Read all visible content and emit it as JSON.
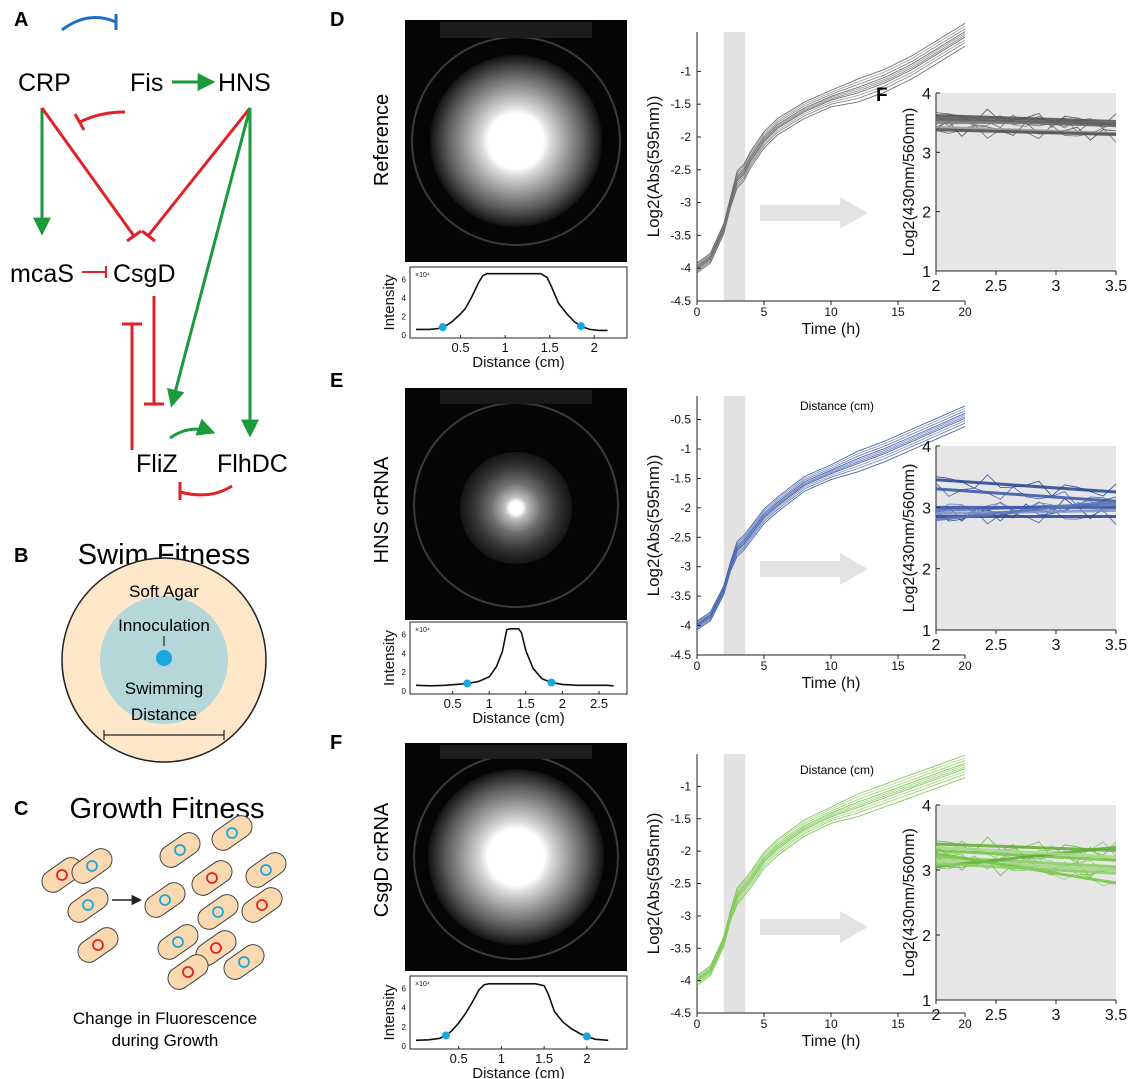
{
  "panel_letters": {
    "a": "A",
    "b": "B",
    "c": "C",
    "d": "D",
    "e": "E",
    "f": "F",
    "f_inset": "F"
  },
  "network": {
    "nodes": [
      {
        "id": "crp",
        "label": "CRP"
      },
      {
        "id": "fis",
        "label": "Fis"
      },
      {
        "id": "hns",
        "label": "HNS"
      },
      {
        "id": "mcas",
        "label": "mcaS"
      },
      {
        "id": "csgd",
        "label": "CsgD"
      },
      {
        "id": "fliz",
        "label": "FliZ"
      },
      {
        "id": "flhdc",
        "label": "FlhDC"
      }
    ],
    "activation_color": "#1a9a3a",
    "repression_color": "#e02127",
    "fis_crp_color": "#1f6fbf"
  },
  "swim": {
    "title": "Swim Fitness",
    "agar_label": "Soft Agar",
    "inoculation_label": "Innoculation",
    "swimming_label": "Swimming",
    "distance_label": "Distance",
    "agar_color": "#fde7c8",
    "zone_color": "#b6d7d9",
    "dot_color": "#1aa7e0"
  },
  "growth": {
    "title": "Growth Fitness",
    "caption_line1": "Change in Fluorescence",
    "caption_line2": "during Growth",
    "cell_color": "#fbd9b0",
    "blue_ring": "#1aa7e0",
    "red_ring": "#e02127"
  },
  "rows": [
    {
      "key": "reference",
      "label": "Reference",
      "color": "#555555",
      "profile": {
        "xlabel": "Distance (cm)",
        "ylabel": "Intensity",
        "exp": "×10⁴",
        "xticks": [
          "0.5",
          "1",
          "1.5",
          "2"
        ],
        "yticks": [
          "0",
          "2",
          "4",
          "6"
        ],
        "xmax": 2.3,
        "ymax": 7,
        "x": [
          0.0,
          0.15,
          0.25,
          0.32,
          0.4,
          0.48,
          0.55,
          0.62,
          0.7,
          0.75,
          0.8,
          1.0,
          1.2,
          1.4,
          1.47,
          1.52,
          1.6,
          1.7,
          1.78,
          1.86,
          1.95,
          2.05,
          2.15
        ],
        "y": [
          0.6,
          0.6,
          0.7,
          0.9,
          1.4,
          2.1,
          2.8,
          4.0,
          5.6,
          6.4,
          6.6,
          6.6,
          6.6,
          6.6,
          6.2,
          5.2,
          3.4,
          2.2,
          1.4,
          0.9,
          0.6,
          0.5,
          0.5
        ],
        "dots": [
          0.3,
          1.85
        ]
      },
      "growth": {
        "xlabel": "Time (h)",
        "ylabel": "Log2(Abs(595nm))",
        "xticks": [
          "0",
          "5",
          "10",
          "15",
          "20"
        ],
        "yticks": [
          "-4.5",
          "-4",
          "-3.5",
          "-3",
          "-2.5",
          "-2",
          "-1.5",
          "-1"
        ],
        "xlim": [
          0,
          20
        ],
        "ylim": [
          -4.5,
          -0.4
        ],
        "shade": [
          2,
          3.6
        ],
        "t": [
          0,
          1,
          2,
          2.5,
          3,
          3.5,
          4,
          5,
          6,
          8,
          10,
          12,
          14,
          16,
          18,
          20
        ],
        "y": [
          -4.0,
          -3.85,
          -3.4,
          -3.0,
          -2.65,
          -2.55,
          -2.35,
          -2.05,
          -1.85,
          -1.6,
          -1.42,
          -1.3,
          -1.15,
          -0.95,
          -0.7,
          -0.45
        ]
      },
      "inset": {
        "ylabel": "Log2(430nm/560nm)",
        "xticks": [
          "2",
          "2.5",
          "3",
          "3.5"
        ],
        "yticks": [
          "1",
          "2",
          "3",
          "4"
        ],
        "xlim": [
          2,
          3.5
        ],
        "ylim": [
          1,
          4
        ],
        "fits": [
          [
            3.62,
            3.52
          ],
          [
            3.55,
            3.45
          ],
          [
            3.5,
            3.5
          ],
          [
            3.42,
            3.32
          ],
          [
            3.38,
            3.3
          ],
          [
            3.58,
            3.48
          ]
        ]
      }
    },
    {
      "key": "hns",
      "label": "HNS crRNA",
      "color": "#2a4aa0",
      "annotation": "Distance (cm)",
      "profile": {
        "xlabel": "Distance (cm)",
        "ylabel": "Intensity",
        "exp": "×10⁴",
        "xticks": [
          "0.5",
          "1",
          "1.5",
          "2",
          "2.5"
        ],
        "yticks": [
          "0",
          "2",
          "4",
          "6"
        ],
        "xmax": 2.8,
        "ymax": 7,
        "x": [
          0.0,
          0.2,
          0.4,
          0.55,
          0.7,
          0.85,
          1.0,
          1.1,
          1.18,
          1.24,
          1.28,
          1.4,
          1.44,
          1.5,
          1.6,
          1.72,
          1.85,
          2.0,
          2.2,
          2.4,
          2.6,
          2.7
        ],
        "y": [
          0.6,
          0.55,
          0.6,
          0.7,
          0.8,
          1.0,
          1.5,
          2.6,
          4.2,
          6.5,
          6.6,
          6.6,
          6.2,
          4.3,
          2.4,
          1.3,
          0.9,
          0.7,
          0.6,
          0.6,
          0.6,
          0.55
        ],
        "dots": [
          0.7,
          1.85
        ]
      },
      "growth": {
        "xlabel": "Time (h)",
        "ylabel": "Log2(Abs(595nm))",
        "xticks": [
          "0",
          "5",
          "10",
          "15",
          "20"
        ],
        "yticks": [
          "-4.5",
          "-4",
          "-3.5",
          "-3",
          "-2.5",
          "-2",
          "-1.5",
          "-1",
          "-0.5"
        ],
        "xlim": [
          0,
          20
        ],
        "ylim": [
          -4.5,
          -0.1
        ],
        "shade": [
          2,
          3.6
        ],
        "t": [
          0,
          1,
          2,
          2.5,
          3,
          3.5,
          4,
          5,
          6,
          8,
          10,
          12,
          14,
          16,
          18,
          20
        ],
        "y": [
          -4.0,
          -3.85,
          -3.4,
          -3.0,
          -2.7,
          -2.6,
          -2.45,
          -2.15,
          -1.95,
          -1.6,
          -1.4,
          -1.22,
          -1.05,
          -0.85,
          -0.65,
          -0.45
        ]
      },
      "inset": {
        "ylabel": "Log2(430nm/560nm)",
        "xticks": [
          "2",
          "2.5",
          "3",
          "3.5"
        ],
        "yticks": [
          "1",
          "2",
          "3",
          "4"
        ],
        "xlim": [
          2,
          3.5
        ],
        "ylim": [
          1,
          4
        ],
        "fits": [
          [
            3.45,
            3.25
          ],
          [
            3.3,
            3.1
          ],
          [
            2.95,
            3.05
          ],
          [
            2.9,
            2.95
          ],
          [
            2.85,
            2.85
          ],
          [
            3.0,
            3.0
          ],
          [
            2.8,
            3.1
          ]
        ]
      }
    },
    {
      "key": "csgd",
      "label": "CsgD crRNA",
      "color": "#6abf3a",
      "annotation": "Distance (cm)",
      "profile": {
        "xlabel": "Distance (cm)",
        "ylabel": "Intensity",
        "exp": "×10⁴",
        "xticks": [
          "0.5",
          "1",
          "1.5",
          "2"
        ],
        "yticks": [
          "0",
          "2",
          "4",
          "6"
        ],
        "xmax": 2.4,
        "ymax": 7,
        "x": [
          0.0,
          0.15,
          0.28,
          0.35,
          0.42,
          0.5,
          0.58,
          0.66,
          0.74,
          0.8,
          0.85,
          1.0,
          1.2,
          1.4,
          1.5,
          1.55,
          1.62,
          1.72,
          1.82,
          1.92,
          2.0,
          2.1,
          2.25
        ],
        "y": [
          0.6,
          0.65,
          0.8,
          1.1,
          1.6,
          2.4,
          3.4,
          4.6,
          5.9,
          6.4,
          6.5,
          6.5,
          6.5,
          6.5,
          6.3,
          5.4,
          3.6,
          2.5,
          1.8,
          1.3,
          1.0,
          0.7,
          0.6
        ],
        "dots": [
          0.35,
          2.0
        ]
      },
      "growth": {
        "xlabel": "Time (h)",
        "ylabel": "Log2(Abs(595nm))",
        "xticks": [
          "0",
          "5",
          "10",
          "15",
          "20"
        ],
        "yticks": [
          "-4.5",
          "-4",
          "-3.5",
          "-3",
          "-2.5",
          "-2",
          "-1.5",
          "-1"
        ],
        "xlim": [
          0,
          20
        ],
        "ylim": [
          -4.5,
          -0.5
        ],
        "shade": [
          2,
          3.6
        ],
        "t": [
          0,
          1,
          2,
          2.5,
          3,
          3.5,
          4,
          5,
          6,
          8,
          10,
          12,
          14,
          16,
          18,
          20
        ],
        "y": [
          -4.0,
          -3.85,
          -3.4,
          -3.0,
          -2.7,
          -2.58,
          -2.45,
          -2.15,
          -1.95,
          -1.65,
          -1.45,
          -1.3,
          -1.15,
          -1.0,
          -0.85,
          -0.7
        ]
      },
      "inset": {
        "ylabel": "Log2(430nm/560nm)",
        "xticks": [
          "2",
          "2.5",
          "3",
          "3.5"
        ],
        "yticks": [
          "1",
          "2",
          "3",
          "4"
        ],
        "xlim": [
          2,
          3.5
        ],
        "ylim": [
          1,
          4
        ],
        "fits": [
          [
            3.4,
            3.3
          ],
          [
            3.3,
            3.15
          ],
          [
            3.2,
            3.05
          ],
          [
            3.15,
            3.0
          ],
          [
            3.05,
            3.35
          ],
          [
            3.25,
            2.8
          ],
          [
            3.1,
            2.95
          ],
          [
            3.35,
            3.2
          ]
        ]
      }
    }
  ]
}
